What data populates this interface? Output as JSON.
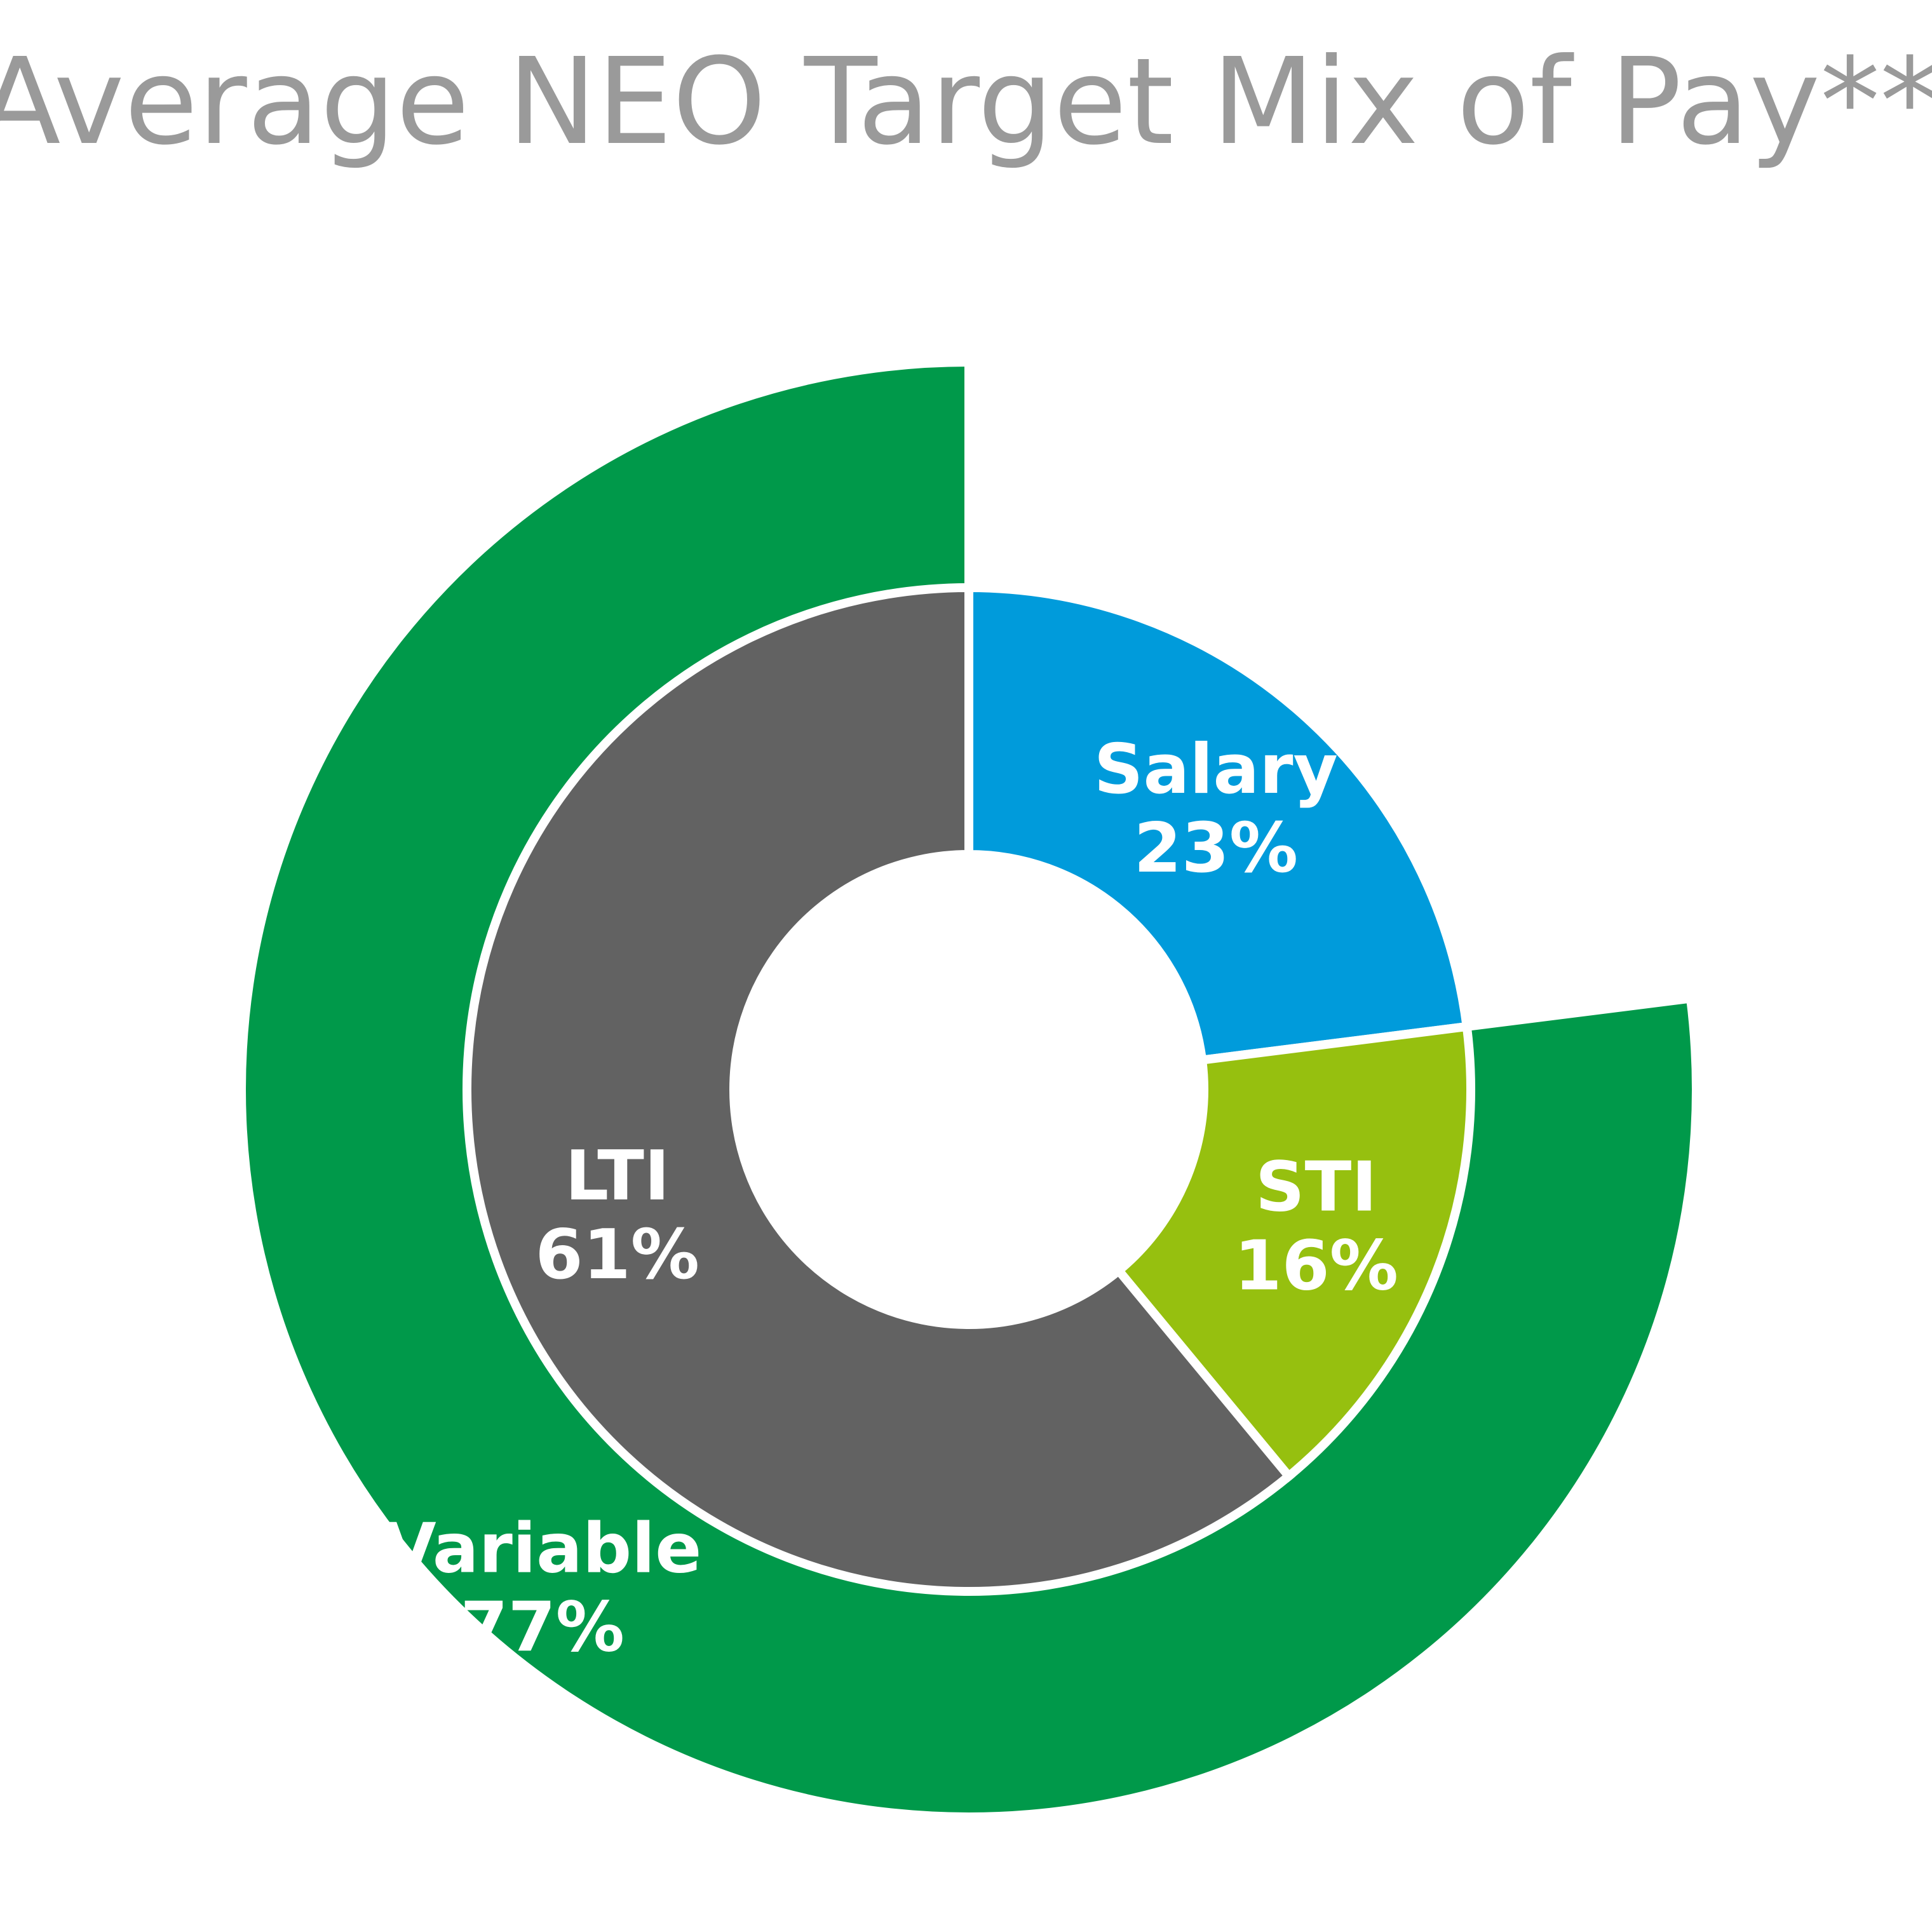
{
  "chart_data": {
    "type": "pie",
    "title": "Average NEO Target Mix of Pay**",
    "inner_ring": [
      {
        "label": "Salary",
        "value": 23,
        "value_label": "23%",
        "color": "#009bdb"
      },
      {
        "label": "STI",
        "value": 16,
        "value_label": "16%",
        "color": "#96c00f"
      },
      {
        "label": "LTI",
        "value": 61,
        "value_label": "61%",
        "color": "#626262"
      }
    ],
    "outer_ring": [
      {
        "label": "Variable",
        "value": 77,
        "value_label": "77%",
        "color": "#00994a"
      }
    ]
  }
}
